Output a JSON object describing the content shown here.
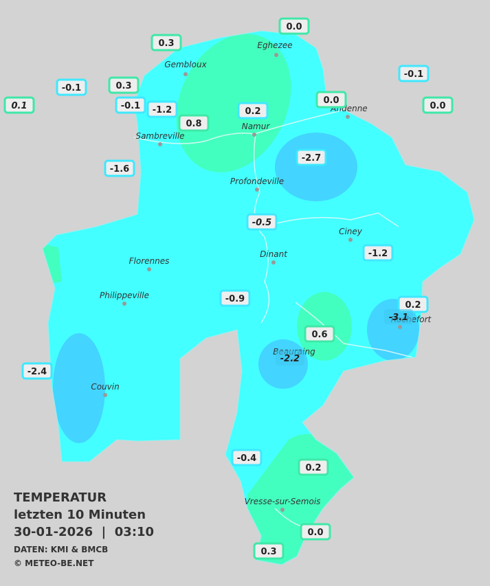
{
  "header": {
    "title": "TEMPERATUR",
    "subtitle": "letzten 10 Minuten",
    "timestamp": "30-01-2026  |  03:10",
    "source": "DATEN: KMI & BMCB",
    "copyright": "© METEO-BE.NET"
  },
  "cities": [
    "Eghezee",
    "Gembloux",
    "Andenne",
    "Namur",
    "Sambreville",
    "Profondeville",
    "Ciney",
    "Dinant",
    "Florennes",
    "Philippeville",
    "Rochefort",
    "Beauraing",
    "Couvin",
    "Vresse-sur-Semois"
  ],
  "stations": [
    "0.0",
    "0.3",
    "-0.1",
    "-0.1",
    "0.3",
    "0.1",
    "-0.1",
    "-1.2",
    "0.0",
    "0.0",
    "0.2",
    "0.8",
    "-2.7",
    "-1.6",
    "-0.5",
    "-1.2",
    "-0.9",
    "0.2",
    "-3.1",
    "0.6",
    "-2.2",
    "-2.4",
    "-0.4",
    "0.2",
    "0.0",
    "0.3"
  ]
}
